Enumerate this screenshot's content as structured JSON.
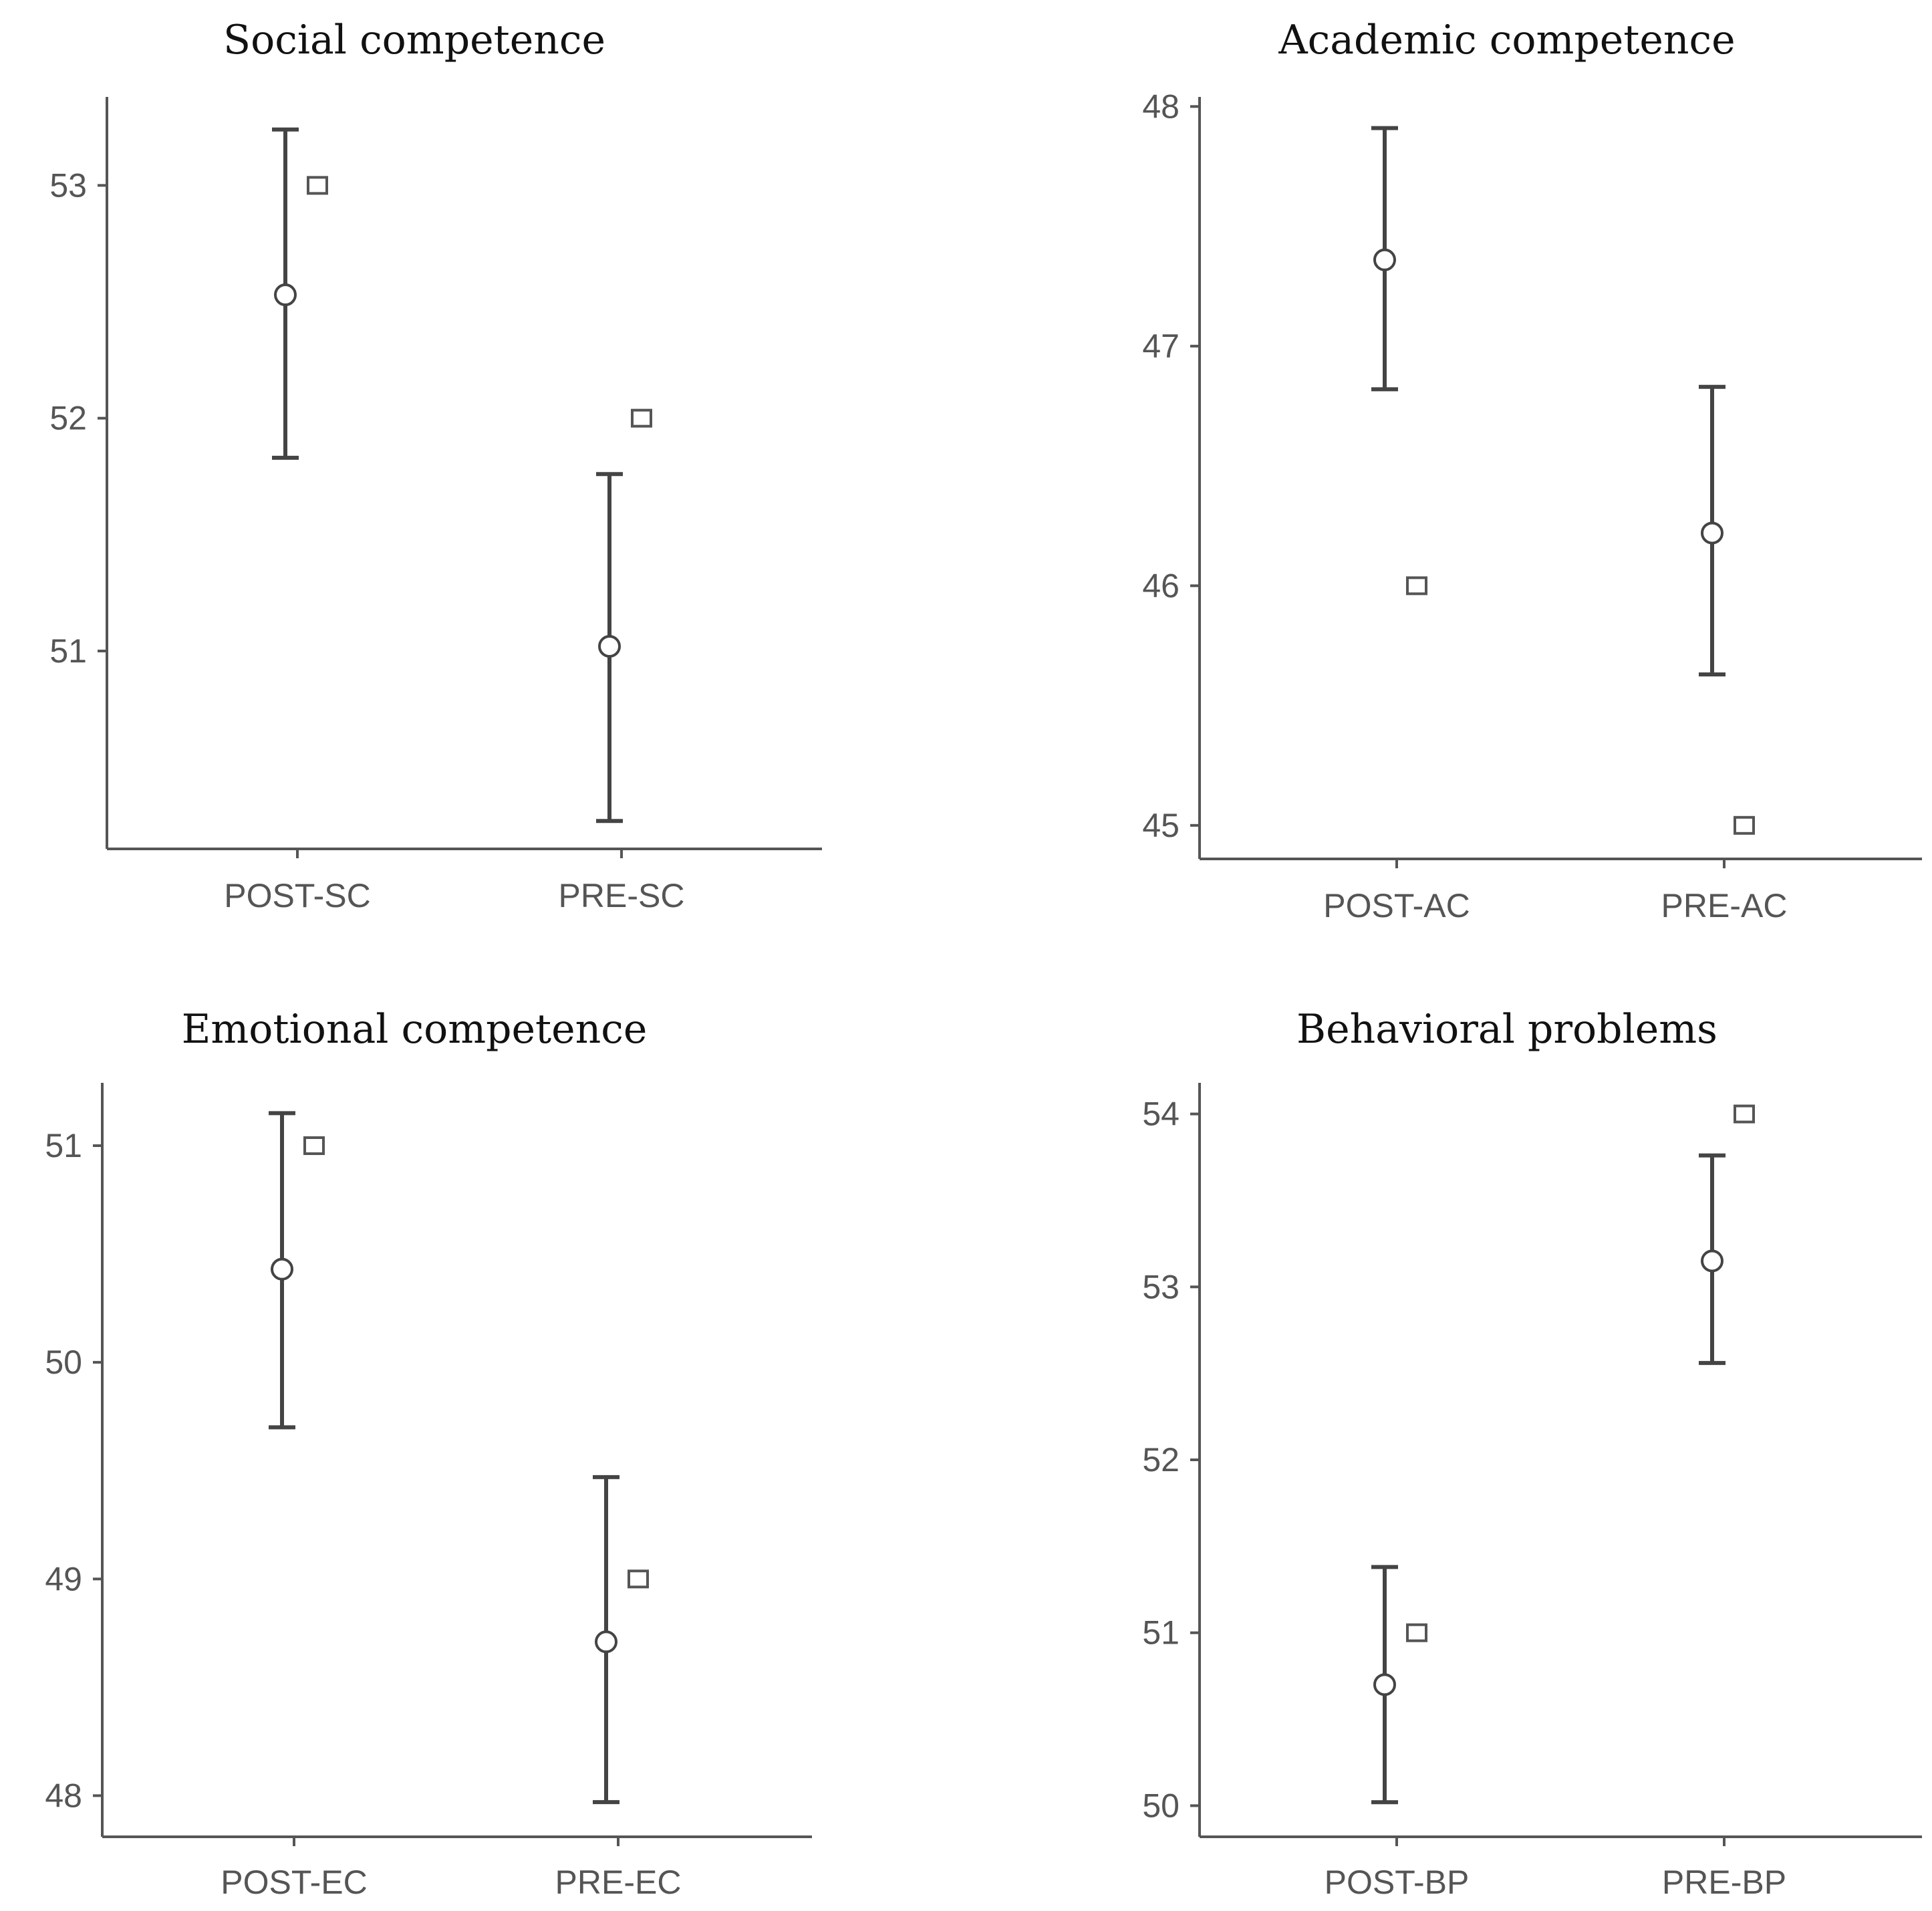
{
  "chart_data": [
    {
      "type": "errorbar",
      "title": "Social competence",
      "categories": [
        "POST-SC",
        "PRE-SC"
      ],
      "mean": [
        52.53,
        51.02
      ],
      "ci_upper": [
        53.24,
        51.76
      ],
      "ci_lower": [
        51.83,
        50.27
      ],
      "median": [
        53,
        52
      ],
      "ylim": [
        50.15,
        53.38
      ],
      "yticks": [
        51,
        52,
        53
      ],
      "ytick_labels": [
        "51",
        "52",
        "53"
      ]
    },
    {
      "type": "errorbar",
      "title": "Academic competence",
      "categories": [
        "POST-AC",
        "PRE-AC"
      ],
      "mean": [
        47.36,
        46.22
      ],
      "ci_upper": [
        47.91,
        46.83
      ],
      "ci_lower": [
        46.82,
        45.63
      ],
      "median": [
        46,
        45
      ],
      "ylim": [
        44.86,
        48.04
      ],
      "yticks": [
        45,
        46,
        47,
        48
      ],
      "ytick_labels": [
        "45",
        "46",
        "47",
        "48"
      ]
    },
    {
      "type": "errorbar",
      "title": "Emotional competence",
      "categories": [
        "POST-EC",
        "PRE-EC"
      ],
      "mean": [
        50.43,
        48.71
      ],
      "ci_upper": [
        51.15,
        49.47
      ],
      "ci_lower": [
        49.7,
        47.97
      ],
      "median": [
        51,
        49
      ],
      "ylim": [
        47.81,
        51.29
      ],
      "yticks": [
        48,
        49,
        50,
        51
      ],
      "ytick_labels": [
        "48",
        "49",
        "50",
        "51"
      ]
    },
    {
      "type": "errorbar",
      "title": "Behavioral problems",
      "categories": [
        "POST-BP",
        "PRE-BP"
      ],
      "mean": [
        50.7,
        53.15
      ],
      "ci_upper": [
        51.38,
        53.76
      ],
      "ci_lower": [
        50.02,
        52.56
      ],
      "median": [
        51,
        54
      ],
      "ylim": [
        49.82,
        54.18
      ],
      "yticks": [
        50,
        51,
        52,
        53,
        54
      ],
      "ytick_labels": [
        "50",
        "51",
        "52",
        "53",
        "54"
      ]
    }
  ]
}
